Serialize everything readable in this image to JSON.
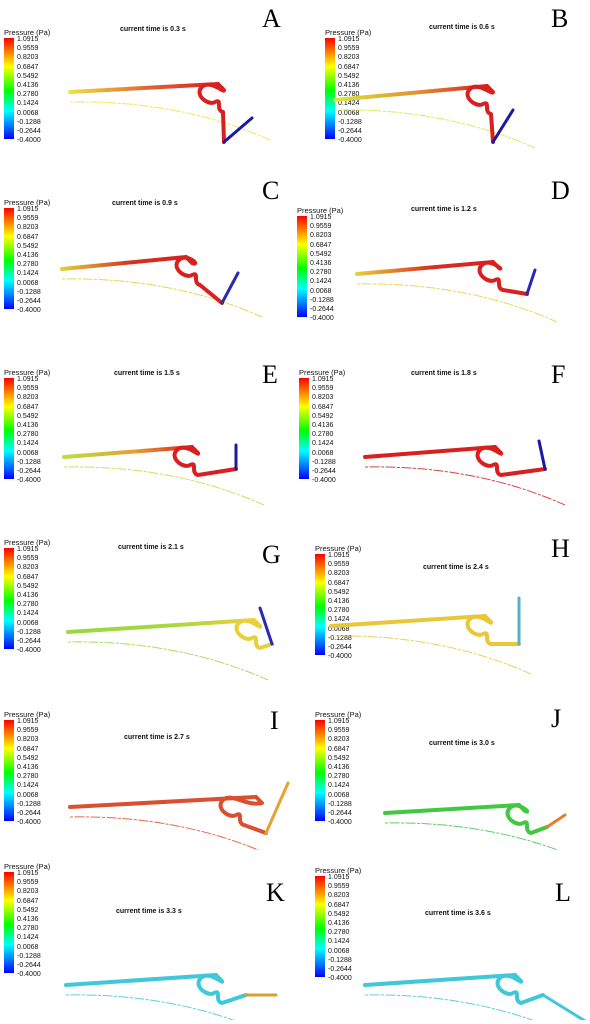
{
  "legend": {
    "title": "Pressure (Pa)",
    "ticks": [
      "1.0915",
      "0.9559",
      "0.8203",
      "0.6847",
      "0.5492",
      "0.4136",
      "0.2780",
      "0.1424",
      "0.0068",
      "-0.1288",
      "-0.2644",
      "-0.4000"
    ]
  },
  "panels": [
    {
      "id": "A",
      "letter": "A",
      "time": "current time is 0.3 s",
      "colors": {
        "p1": "#f0e040",
        "p2": "#e06030",
        "p3": "#d82020",
        "tip": "#1a1aa0"
      }
    },
    {
      "id": "B",
      "letter": "B",
      "time": "current time is 0.6 s",
      "colors": {
        "p1": "#d8e838",
        "p2": "#e09030",
        "p3": "#d82020",
        "tip": "#1a1aa0"
      }
    },
    {
      "id": "C",
      "letter": "C",
      "time": "current time is 0.9 s",
      "colors": {
        "p1": "#e0d038",
        "p2": "#d83020",
        "p3": "#d82020",
        "tip": "#2a2ab0"
      }
    },
    {
      "id": "D",
      "letter": "D",
      "time": "current time is 1.2 s",
      "colors": {
        "p1": "#e8d038",
        "p2": "#d83020",
        "p3": "#d82020",
        "tip": "#2a2ab0"
      }
    },
    {
      "id": "E",
      "letter": "E",
      "time": "current time is 1.5 s",
      "colors": {
        "p1": "#b8e040",
        "p2": "#e8a030",
        "p3": "#d82020",
        "tip": "#1a1aa0"
      }
    },
    {
      "id": "F",
      "letter": "F",
      "time": "current time is 1.8 s",
      "colors": {
        "p1": "#d82020",
        "p2": "#d82020",
        "p3": "#d82020",
        "tip": "#1a1aa0"
      }
    },
    {
      "id": "G",
      "letter": "G",
      "time": "current time is 2.1 s",
      "colors": {
        "p1": "#98d840",
        "p2": "#a8d840",
        "p3": "#e8d038",
        "tip": "#2a2ab0"
      }
    },
    {
      "id": "H",
      "letter": "H",
      "time": "current time is 2.4 s",
      "colors": {
        "p1": "#e8c838",
        "p2": "#e8c838",
        "p3": "#e8c838",
        "tip": "#58b0c8"
      }
    },
    {
      "id": "I",
      "letter": "I",
      "time": "current time is 2.7 s",
      "colors": {
        "p1": "#d85030",
        "p2": "#d85030",
        "p3": "#d85030",
        "tip": "#e8a030"
      }
    },
    {
      "id": "J",
      "letter": "J",
      "time": "current time is 3.0 s",
      "colors": {
        "p1": "#40c840",
        "p2": "#40c840",
        "p3": "#40c840",
        "tip": "#e08030"
      }
    },
    {
      "id": "K",
      "letter": "K",
      "time": "current time is 3.3 s",
      "colors": {
        "p1": "#40c8d8",
        "p2": "#40c8d8",
        "p3": "#40c8d8",
        "tip": "#d8a030"
      }
    },
    {
      "id": "L",
      "letter": "L",
      "time": "current time is 3.6 s",
      "colors": {
        "p1": "#40c8d8",
        "p2": "#40c8d8",
        "p3": "#40c8d8",
        "tip": "#40c8d8"
      }
    }
  ]
}
